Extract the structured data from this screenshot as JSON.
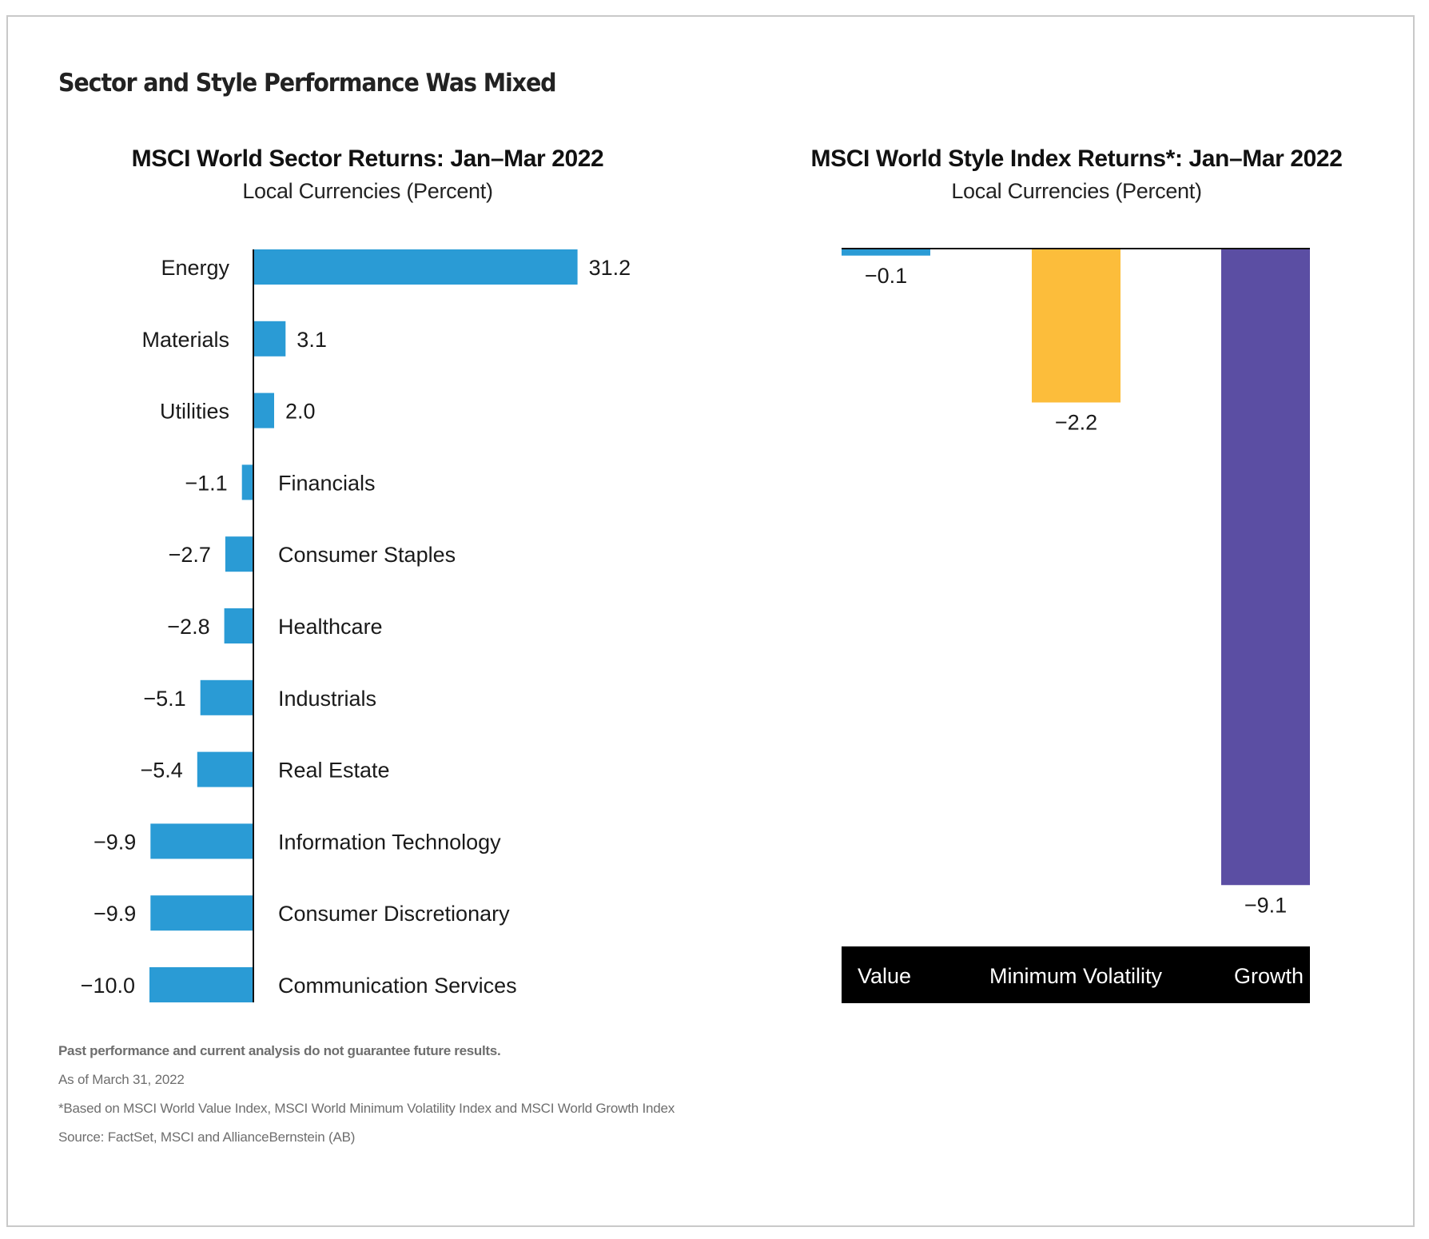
{
  "page": {
    "title": "Sector and Style Performance Was Mixed"
  },
  "footnotes": {
    "disclaimer": "Past performance and current analysis do not guarantee future results.",
    "as_of": "As of March 31, 2022",
    "note": "*Based on MSCI World Value Index, MSCI World Minimum Volatility Index and MSCI World Growth Index",
    "source": "Source: FactSet, MSCI and AllianceBernstein (AB)"
  },
  "chart_data": [
    {
      "type": "bar",
      "orientation": "horizontal",
      "title": "MSCI World Sector Returns: Jan–Mar 2022",
      "subtitle": "Local Currencies (Percent)",
      "xlabel": "",
      "ylabel": "",
      "grid": false,
      "color": "#2a9bd5",
      "categories": [
        "Energy",
        "Materials",
        "Utilities",
        "Financials",
        "Consumer Staples",
        "Healthcare",
        "Industrials",
        "Real Estate",
        "Information Technology",
        "Consumer Discretionary",
        "Communication Services"
      ],
      "values": [
        31.2,
        3.1,
        2.0,
        -1.1,
        -2.7,
        -2.8,
        -5.1,
        -5.4,
        -9.9,
        -9.9,
        -10.0
      ],
      "value_labels": [
        "31.2",
        "3.1",
        "2.0",
        "−1.1",
        "−2.7",
        "−2.8",
        "−5.1",
        "−5.4",
        "−9.9",
        "−9.9",
        "−10.0"
      ],
      "xlim": [
        -10.0,
        31.2
      ]
    },
    {
      "type": "bar",
      "orientation": "vertical",
      "title": "MSCI World Style Index Returns*: Jan–Mar 2022",
      "subtitle": "Local Currencies (Percent)",
      "xlabel": "",
      "ylabel": "",
      "grid": false,
      "categories": [
        "Value",
        "Minimum Volatility",
        "Growth"
      ],
      "values": [
        -0.1,
        -2.2,
        -9.1
      ],
      "value_labels": [
        "−0.1",
        "−2.2",
        "−9.1"
      ],
      "colors": [
        "#2a9bd5",
        "#fcbd3b",
        "#5b4ea3"
      ],
      "category_band_color": "#000000",
      "ylim": [
        -9.1,
        0
      ]
    }
  ]
}
